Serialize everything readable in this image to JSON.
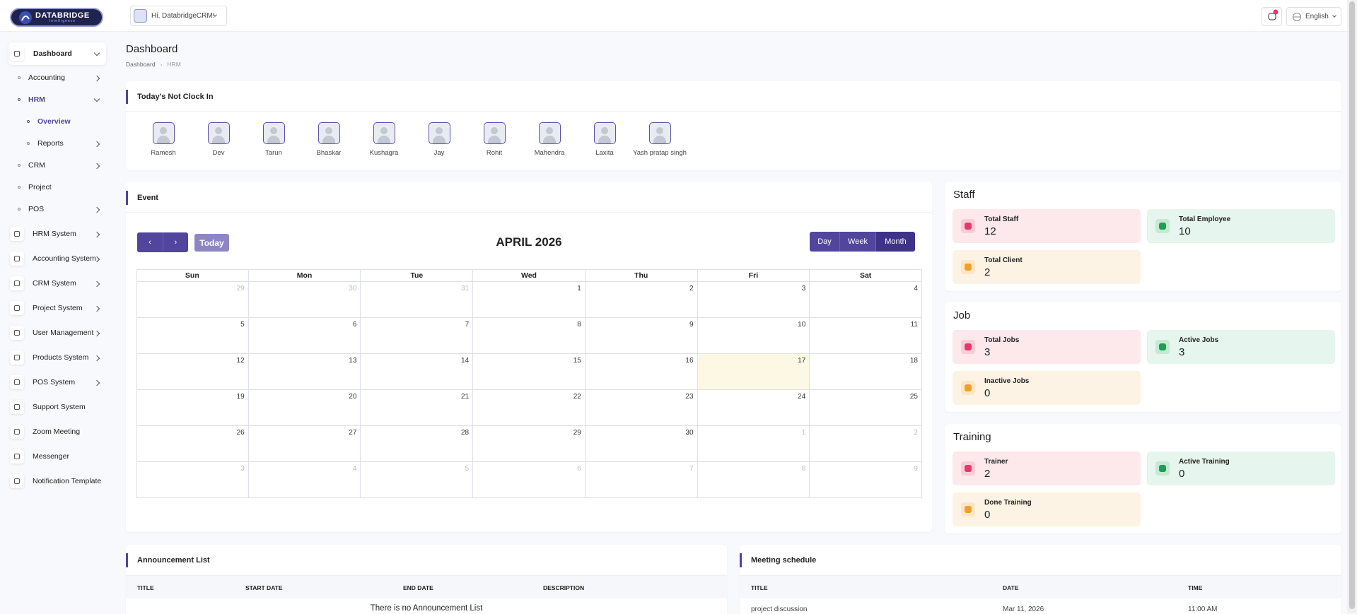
{
  "header": {
    "logo": "DATABRIDGE",
    "logo_sub": "Intelligence",
    "user_greeting": "Hi, DatabridgeCRM!",
    "language": "English"
  },
  "sidebar": [
    {
      "label": "Dashboard",
      "level": 0,
      "arrow": "down",
      "active": true
    },
    {
      "label": "Accounting",
      "level": 1,
      "arrow": "right"
    },
    {
      "label": "HRM",
      "level": 1,
      "arrow": "down",
      "active": true
    },
    {
      "label": "Overview",
      "level": 2,
      "active": true
    },
    {
      "label": "Reports",
      "level": 2,
      "arrow": "right"
    },
    {
      "label": "CRM",
      "level": 1,
      "arrow": "right"
    },
    {
      "label": "Project",
      "level": 1
    },
    {
      "label": "POS",
      "level": 1,
      "arrow": "right"
    },
    {
      "label": "HRM System",
      "level": 0,
      "arrow": "right"
    },
    {
      "label": "Accounting System",
      "level": 0,
      "arrow": "right"
    },
    {
      "label": "CRM System",
      "level": 0,
      "arrow": "right"
    },
    {
      "label": "Project System",
      "level": 0,
      "arrow": "right"
    },
    {
      "label": "User Management",
      "level": 0,
      "arrow": "right"
    },
    {
      "label": "Products System",
      "level": 0,
      "arrow": "right"
    },
    {
      "label": "POS System",
      "level": 0,
      "arrow": "right"
    },
    {
      "label": "Support System",
      "level": 0
    },
    {
      "label": "Zoom Meeting",
      "level": 0
    },
    {
      "label": "Messenger",
      "level": 0
    },
    {
      "label": "Notification Template",
      "level": 0
    }
  ],
  "page": {
    "title": "Dashboard",
    "breadcrumb": [
      "Dashboard",
      "HRM"
    ]
  },
  "not_clock_in": {
    "title": "Today's Not Clock In",
    "names": [
      "Ramesh",
      "Dev",
      "Tarun",
      "Bhaskar",
      "Kushagra",
      "Jay",
      "Rohit",
      "Mahendra",
      "Laxita",
      "Yash pratap singh"
    ]
  },
  "event": {
    "title": "Event",
    "today_button": "Today",
    "month_title": "APRIL 2026",
    "views": [
      "Day",
      "Week",
      "Month"
    ],
    "active_view": "Month",
    "weekdays": [
      "Sun",
      "Mon",
      "Tue",
      "Wed",
      "Thu",
      "Fri",
      "Sat"
    ],
    "weeks": [
      [
        29,
        30,
        31,
        1,
        2,
        3,
        4
      ],
      [
        5,
        6,
        7,
        8,
        9,
        10,
        11
      ],
      [
        12,
        13,
        14,
        15,
        16,
        17,
        18
      ],
      [
        19,
        20,
        21,
        22,
        23,
        24,
        25
      ],
      [
        26,
        27,
        28,
        29,
        30,
        1,
        2
      ],
      [
        3,
        4,
        5,
        6,
        7,
        8,
        9
      ]
    ],
    "highlighted_day": 17
  },
  "stat_cards": [
    {
      "title": "Staff",
      "items": [
        {
          "label": "Total Staff",
          "value": 12,
          "color": "pink"
        },
        {
          "label": "Total Employee",
          "value": 10,
          "color": "green"
        },
        {
          "label": "Total Client",
          "value": 2,
          "color": "orange"
        }
      ]
    },
    {
      "title": "Job",
      "items": [
        {
          "label": "Total Jobs",
          "value": 3,
          "color": "pink"
        },
        {
          "label": "Active Jobs",
          "value": 3,
          "color": "green"
        },
        {
          "label": "Inactive Jobs",
          "value": 0,
          "color": "orange"
        }
      ]
    },
    {
      "title": "Training",
      "items": [
        {
          "label": "Trainer",
          "value": 2,
          "color": "pink"
        },
        {
          "label": "Active Training",
          "value": 0,
          "color": "green"
        },
        {
          "label": "Done Training",
          "value": 0,
          "color": "orange"
        }
      ]
    }
  ],
  "announcements": {
    "title": "Announcement List",
    "columns": [
      "TITLE",
      "START DATE",
      "END DATE",
      "DESCRIPTION"
    ],
    "empty": "There is no Announcement List"
  },
  "meetings": {
    "title": "Meeting schedule",
    "columns": [
      "TITLE",
      "DATE",
      "TIME"
    ],
    "rows": [
      [
        "project discussion",
        "Mar 11, 2026",
        "11:00 AM"
      ]
    ]
  }
}
